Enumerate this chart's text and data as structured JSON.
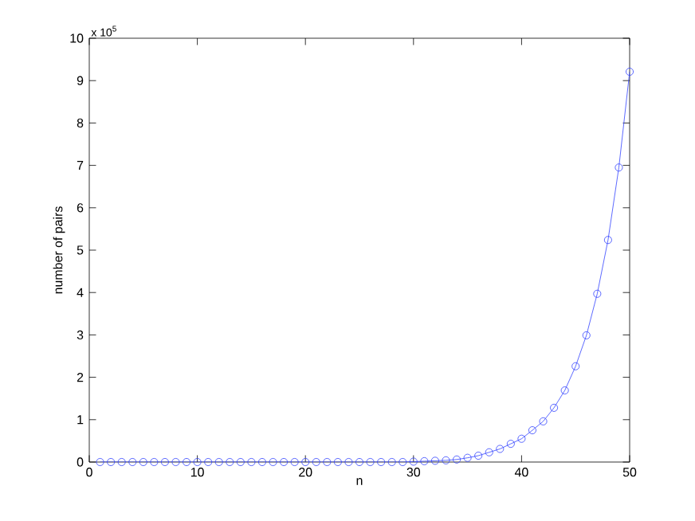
{
  "chart_data": {
    "type": "line",
    "xlabel": "n",
    "ylabel": "number of pairs",
    "annotations": [
      "x 10$^{5}$"
    ],
    "x": [
      1,
      2,
      3,
      4,
      5,
      6,
      7,
      8,
      9,
      10,
      11,
      12,
      13,
      14,
      15,
      16,
      17,
      18,
      19,
      20,
      21,
      22,
      23,
      24,
      25,
      26,
      27,
      28,
      29,
      30,
      31,
      32,
      33,
      34,
      35,
      36,
      37,
      38,
      39,
      40,
      41,
      42,
      43,
      44,
      45,
      46,
      47,
      48,
      49,
      50
    ],
    "series": [
      {
        "color": "#3344ff",
        "values": [
          0,
          0,
          0,
          0,
          0,
          0,
          0,
          0,
          0,
          0,
          0,
          0,
          0,
          0,
          0,
          0,
          0,
          0,
          0,
          0,
          0,
          0,
          0,
          0,
          0,
          0,
          0,
          0,
          0,
          0.01,
          0.02,
          0.03,
          0.04,
          0.06,
          0.1,
          0.15,
          0.23,
          0.31,
          0.43,
          0.55,
          0.75,
          0.96,
          1.28,
          1.69,
          2.26,
          2.99,
          3.97,
          5.24,
          6.95,
          9.21
        ]
      }
    ],
    "xlim": [
      0,
      50
    ],
    "ylim": [
      0,
      10
    ],
    "xticks": [
      0,
      10,
      20,
      30,
      40,
      50
    ],
    "yticks": [
      0,
      1,
      2,
      3,
      4,
      5,
      6,
      7,
      8,
      9,
      10
    ],
    "marker": "circle",
    "line_style": "solid"
  }
}
